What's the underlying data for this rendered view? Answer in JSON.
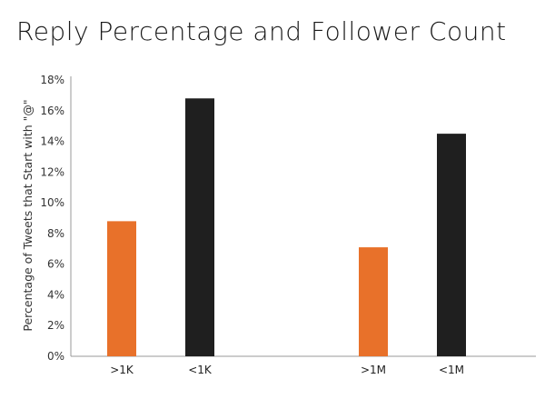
{
  "chart_data": {
    "type": "bar",
    "title": "Reply Percentage and Follower Count",
    "xlabel": "",
    "ylabel": "Percentage of Tweets that Start with \"@\"",
    "categories": [
      ">1K",
      "<1K",
      ">1M",
      "<1M"
    ],
    "values": [
      8.8,
      16.8,
      7.1,
      14.5
    ],
    "ylim": [
      0,
      18
    ],
    "yticks": [
      0,
      2,
      4,
      6,
      8,
      10,
      12,
      14,
      16,
      18
    ],
    "ytick_labels": [
      "0%",
      "2%",
      "4%",
      "6%",
      "8%",
      "10%",
      "12%",
      "14%",
      "16%",
      "18%"
    ],
    "bar_colors": [
      "#e8712a",
      "#1f1f1f",
      "#e8712a",
      "#1f1f1f"
    ],
    "grid": false,
    "legend": "none"
  }
}
